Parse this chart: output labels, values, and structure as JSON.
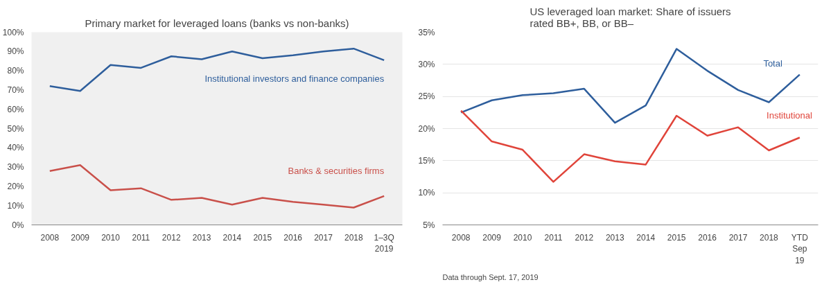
{
  "chart_data": [
    {
      "type": "line",
      "title": "Primary market for leveraged loans (banks vs non-banks)",
      "categories": [
        "2008",
        "2009",
        "2010",
        "2011",
        "2012",
        "2013",
        "2014",
        "2015",
        "2016",
        "2017",
        "2018",
        "1–3Q\n2019"
      ],
      "series": [
        {
          "name": "Institutional investors and finance companies",
          "color": "#2e5e9c",
          "values": [
            72,
            69.5,
            83,
            81.5,
            87.5,
            86,
            90,
            86.5,
            88,
            90,
            91.5,
            85.5
          ]
        },
        {
          "name": "Banks & securities firms",
          "color": "#c9504a",
          "values": [
            28,
            31,
            18,
            19,
            13,
            14,
            10.5,
            14,
            12,
            10.5,
            9,
            15
          ]
        }
      ],
      "ylim": [
        0,
        100
      ],
      "yticks": [
        {
          "value": 0,
          "label": "0%"
        },
        {
          "value": 10,
          "label": "10%"
        },
        {
          "value": 20,
          "label": "20%"
        },
        {
          "value": 30,
          "label": "30%"
        },
        {
          "value": 40,
          "label": "40%"
        },
        {
          "value": 50,
          "label": "50%"
        },
        {
          "value": 60,
          "label": "60%"
        },
        {
          "value": 70,
          "label": "70%"
        },
        {
          "value": 80,
          "label": "80%"
        },
        {
          "value": 90,
          "label": "90%"
        },
        {
          "value": 100,
          "label": "100%"
        }
      ],
      "grid": false,
      "legend": false,
      "marker": "none",
      "line_style": "solid"
    },
    {
      "type": "line",
      "title": "US leveraged loan market: Share of issuers\nrated BB+, BB, or BB–",
      "categories": [
        "2008",
        "2009",
        "2010",
        "2011",
        "2012",
        "2013",
        "2014",
        "2015",
        "2016",
        "2017",
        "2018",
        "YTD\nSep\n19"
      ],
      "series": [
        {
          "name": "Total",
          "color": "#2e5e9c",
          "values": [
            22.5,
            24.4,
            25.2,
            25.5,
            26.2,
            20.9,
            23.6,
            32.4,
            29,
            26,
            24.1,
            28.4
          ]
        },
        {
          "name": "Institutional",
          "color": "#e0443a",
          "values": [
            22.8,
            18,
            16.7,
            11.7,
            16,
            14.9,
            14.4,
            22,
            18.9,
            20.2,
            16.6,
            18.6
          ]
        }
      ],
      "ylim": [
        5,
        35
      ],
      "yticks": [
        {
          "value": 5,
          "label": "5%"
        },
        {
          "value": 10,
          "label": "10%"
        },
        {
          "value": 15,
          "label": "15%"
        },
        {
          "value": 20,
          "label": "20%"
        },
        {
          "value": 25,
          "label": "25%"
        },
        {
          "value": 30,
          "label": "30%"
        },
        {
          "value": 35,
          "label": "35%"
        }
      ],
      "grid": "y",
      "legend": false,
      "marker": "none",
      "line_style": "solid",
      "annotations": [
        "Data through Sept. 17, 2019"
      ]
    }
  ]
}
